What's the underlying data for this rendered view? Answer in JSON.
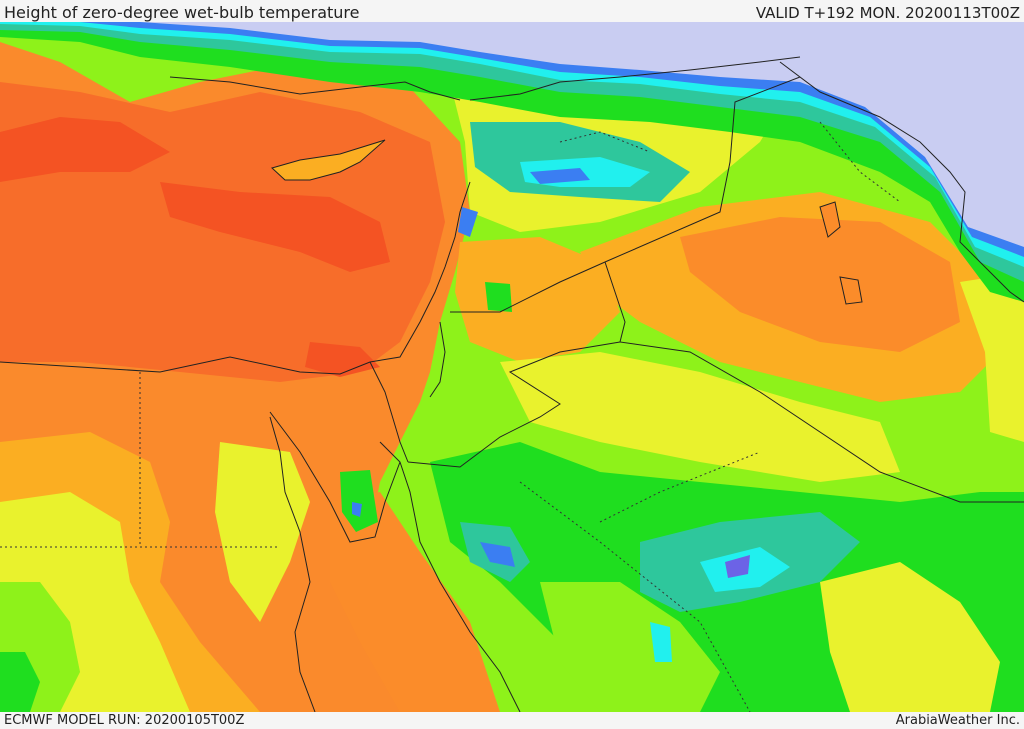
{
  "header": {
    "title": "Height of zero-degree wet-bulb temperature",
    "valid": "VALID T+192 MON. 20200113T00Z"
  },
  "footer": {
    "model_run": "ECMWF MODEL RUN: 20200105T00Z",
    "credit": "ArabiaWeather Inc."
  },
  "map": {
    "colors": {
      "sea": "#c9cdf2",
      "dark_red": "#f45323",
      "red_orange": "#fa6a2a",
      "orange": "#fb8c2a",
      "light_orange": "#fbae22",
      "yellow": "#e9f22d",
      "lime": "#8ef21a",
      "green": "#1fde1f",
      "teal": "#2ec79c",
      "cyan": "#21f0ee",
      "blue": "#3b7ef2",
      "violet": "#6c63e6",
      "border": "#222222"
    }
  }
}
